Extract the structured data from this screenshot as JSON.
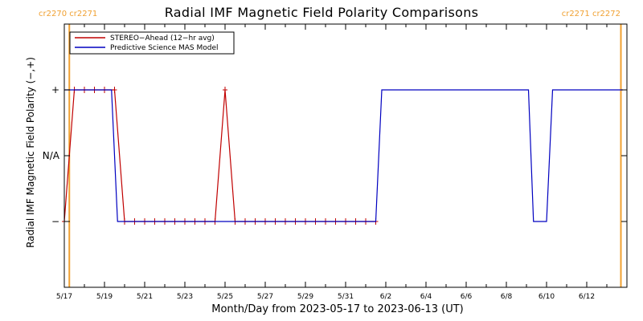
{
  "chart_data": {
    "type": "line",
    "title": "Radial IMF Magnetic Field Polarity Comparisons",
    "xlabel": "Month/Day from 2023-05-17 to 2023-06-13 (UT)",
    "ylabel": "Radial IMF Magnetic Field Polarity (−,+)",
    "x_tick_labels": [
      "5/17",
      "5/19",
      "5/21",
      "5/23",
      "5/25",
      "5/27",
      "5/29",
      "5/31",
      "6/2",
      "6/4",
      "6/6",
      "6/8",
      "6/10",
      "6/12"
    ],
    "x_ticks_day": [
      0,
      2,
      4,
      6,
      8,
      10,
      12,
      14,
      16,
      18,
      20,
      22,
      24,
      26
    ],
    "xlim_day": [
      0,
      28
    ],
    "y_tick_labels": [
      "+",
      "N/A",
      "−"
    ],
    "y_ticks": [
      1,
      0,
      -1
    ],
    "ylim": [
      -2,
      2
    ],
    "carrington_labels": {
      "left": "cr2270 cr2271",
      "right": "cr2271 cr2272"
    },
    "carrington_boundaries_day": [
      0.25,
      27.7
    ],
    "legend_position": "top-left",
    "series": [
      {
        "name": "STEREO−Ahead (12−hr avg)",
        "color": "#c00000",
        "markers": true,
        "x_day": [
          0.0,
          0.5,
          1.0,
          1.5,
          2.0,
          2.5,
          3.0,
          3.5,
          4.0,
          4.5,
          5.0,
          5.5,
          6.0,
          6.5,
          7.0,
          7.5,
          8.0,
          8.5,
          9.0,
          9.5,
          10.0,
          10.5,
          11.0,
          11.5,
          12.0,
          12.5,
          13.0,
          13.5,
          14.0,
          14.5,
          15.0,
          15.5
        ],
        "y": [
          -1,
          1,
          1,
          1,
          1,
          1,
          -1,
          -1,
          -1,
          -1,
          -1,
          -1,
          -1,
          -1,
          -1,
          -1,
          1,
          -1,
          -1,
          -1,
          -1,
          -1,
          -1,
          -1,
          -1,
          -1,
          -1,
          -1,
          -1,
          -1,
          -1,
          -1
        ]
      },
      {
        "name": "Predictive Science MAS Model",
        "color": "#0000c0",
        "markers": false,
        "x_day": [
          0.0,
          0.25,
          2.35,
          2.65,
          15.5,
          15.8,
          23.1,
          23.35,
          24.0,
          24.3,
          27.8
        ],
        "y": [
          1,
          1,
          1,
          -1,
          -1,
          1,
          1,
          -1,
          -1,
          1,
          1
        ]
      }
    ]
  }
}
